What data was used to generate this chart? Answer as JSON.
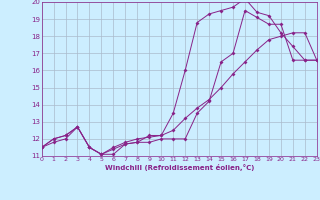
{
  "xlabel": "Windchill (Refroidissement éolien,°C)",
  "bg_color": "#cceeff",
  "grid_color": "#aabbcc",
  "line_color": "#882288",
  "xmin": 0,
  "xmax": 23,
  "ymin": 11,
  "ymax": 20,
  "line1_x": [
    0,
    1,
    2,
    3,
    4,
    5,
    6,
    7,
    8,
    9,
    10,
    11,
    12,
    13,
    14,
    15,
    16,
    17,
    18,
    19,
    20,
    21,
    22,
    23
  ],
  "line1_y": [
    11.5,
    12.0,
    12.2,
    12.7,
    11.5,
    11.1,
    11.1,
    11.7,
    11.8,
    11.8,
    12.0,
    12.0,
    12.0,
    13.5,
    14.2,
    16.5,
    17.0,
    19.5,
    19.1,
    18.7,
    18.7,
    16.6,
    16.6,
    16.6
  ],
  "line2_x": [
    0,
    1,
    2,
    3,
    4,
    5,
    6,
    7,
    8,
    9,
    10,
    11,
    12,
    13,
    14,
    15,
    16,
    17,
    18,
    19,
    20,
    21,
    22,
    23
  ],
  "line2_y": [
    11.5,
    12.0,
    12.2,
    12.7,
    11.5,
    11.1,
    11.4,
    11.7,
    11.8,
    12.2,
    12.2,
    13.5,
    16.0,
    18.8,
    19.3,
    19.5,
    19.7,
    20.2,
    19.4,
    19.2,
    18.2,
    17.4,
    16.6,
    16.6
  ],
  "line3_x": [
    0,
    1,
    2,
    3,
    4,
    5,
    6,
    7,
    8,
    9,
    10,
    11,
    12,
    13,
    14,
    15,
    16,
    17,
    18,
    19,
    20,
    21,
    22,
    23
  ],
  "line3_y": [
    11.5,
    11.8,
    12.0,
    12.7,
    11.5,
    11.1,
    11.5,
    11.8,
    12.0,
    12.1,
    12.2,
    12.5,
    13.2,
    13.8,
    14.3,
    15.0,
    15.8,
    16.5,
    17.2,
    17.8,
    18.0,
    18.2,
    18.2,
    16.6
  ],
  "yticks": [
    11,
    12,
    13,
    14,
    15,
    16,
    17,
    18,
    19,
    20
  ],
  "xticks": [
    0,
    1,
    2,
    3,
    4,
    5,
    6,
    7,
    8,
    9,
    10,
    11,
    12,
    13,
    14,
    15,
    16,
    17,
    18,
    19,
    20,
    21,
    22,
    23
  ]
}
